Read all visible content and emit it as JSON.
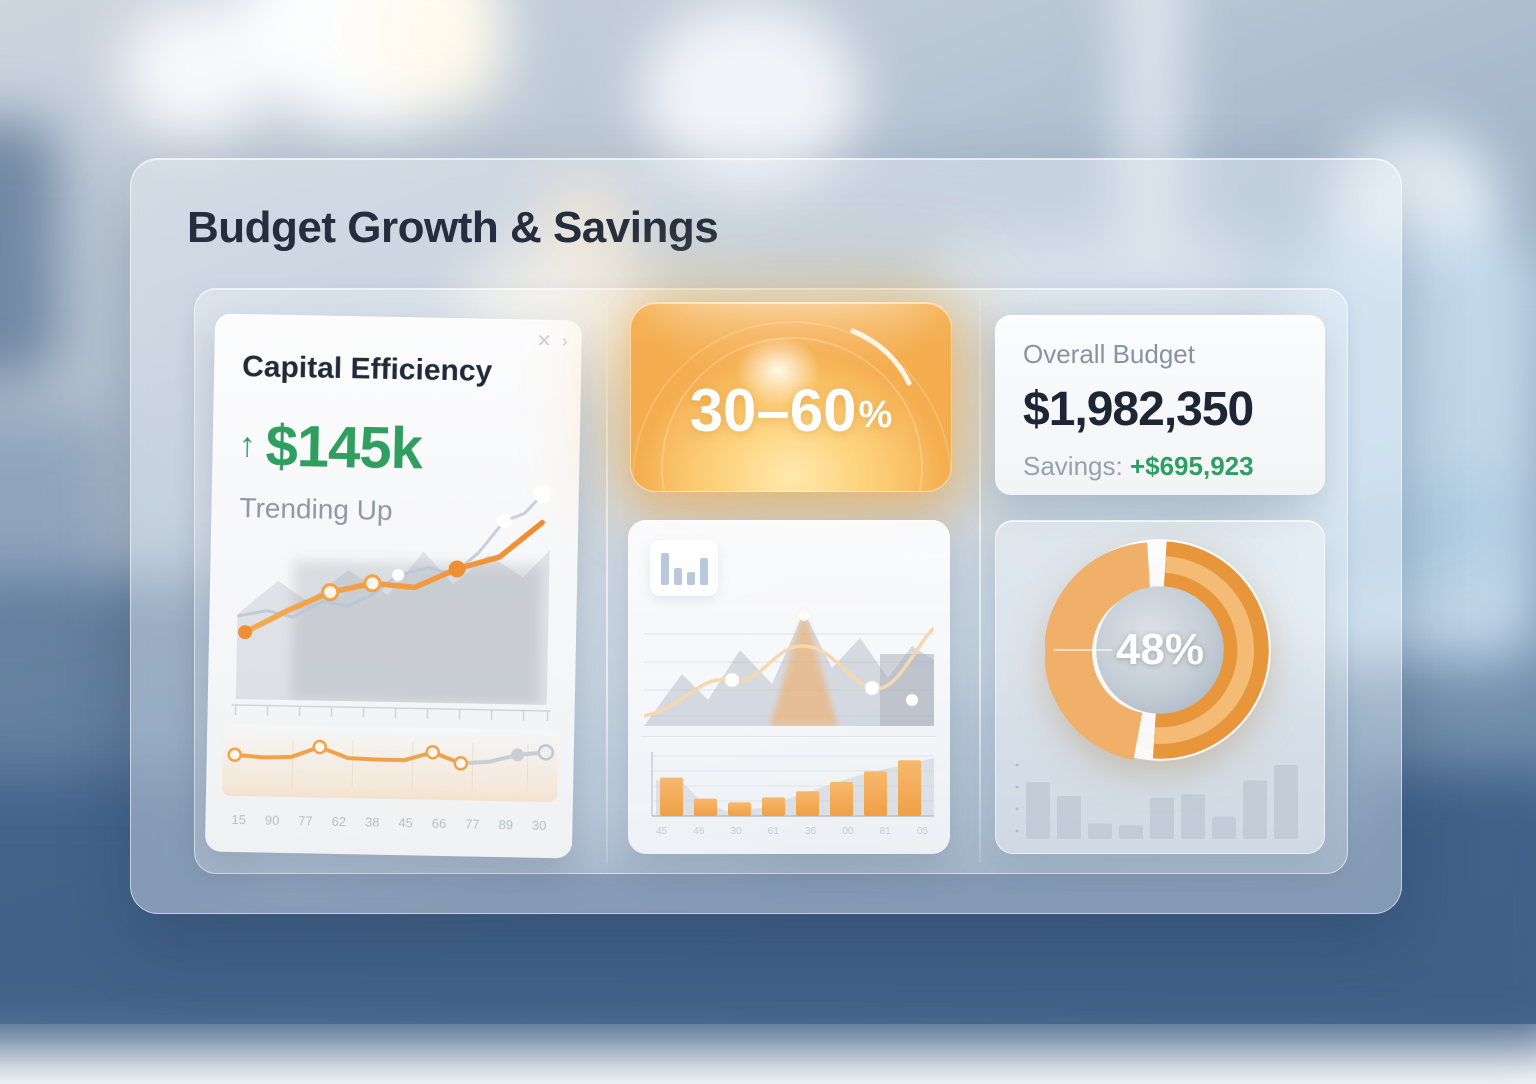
{
  "header": {
    "title": "Budget Growth & Savings"
  },
  "capital_card": {
    "title": "Capital Efficiency",
    "trend_arrow": "↑",
    "value": "$145k",
    "trend_label": "Trending Up",
    "close_icon": "✕",
    "expand_icon": "›"
  },
  "highlight_card": {
    "value": "30–60",
    "unit": "%"
  },
  "budget_card": {
    "label": "Overall Budget",
    "amount": "$1,982,350",
    "savings_label": "Savings: ",
    "savings_amount": "+$695,923"
  },
  "donut_card": {
    "center_label": "48%"
  },
  "colors": {
    "accent_orange": "#F0A242",
    "positive_green": "#2F9E62",
    "ink_navy": "#222D3D",
    "muted_gray": "#8D99A8"
  },
  "chart_data": [
    {
      "name": "capital-trend",
      "type": "line",
      "values": [
        20,
        34,
        46,
        52,
        50,
        62,
        70,
        92
      ],
      "ylim": [
        0,
        100
      ],
      "markers": [
        {
          "i": 0,
          "style": "filled"
        },
        {
          "i": 2,
          "style": "hollow"
        },
        {
          "i": 3,
          "style": "hollow"
        },
        {
          "i": 5,
          "style": "filled"
        }
      ],
      "note": "orange upward trend line over gray mountain silhouettes, unlabeled axes"
    },
    {
      "name": "capital-sparkline",
      "type": "line",
      "values": [
        48,
        44,
        46,
        66,
        46,
        44,
        44,
        60,
        40,
        44,
        58,
        64
      ],
      "gray_from": 8,
      "markers": [
        {
          "i": 0,
          "style": "hollow"
        },
        {
          "i": 3,
          "style": "hollow"
        },
        {
          "i": 7,
          "style": "hollow"
        },
        {
          "i": 8,
          "style": "hollow"
        },
        {
          "i": 10,
          "style": "gray"
        },
        {
          "i": 11,
          "style": "grayhollow"
        }
      ],
      "x_labels": [
        "15",
        "90",
        "77",
        "62",
        "38",
        "45",
        "66",
        "77",
        "89",
        "30"
      ]
    },
    {
      "name": "mid-bars",
      "type": "bar",
      "x_labels": [
        "45",
        "46",
        "30",
        "61",
        "36",
        "00",
        "81",
        "05"
      ],
      "values": [
        62,
        28,
        22,
        30,
        40,
        55,
        72,
        90
      ],
      "ylim": [
        0,
        100
      ]
    },
    {
      "name": "budget-donut",
      "type": "pie",
      "values": [
        48,
        52
      ],
      "center_label": "48%"
    },
    {
      "name": "donut-mini-bars",
      "type": "bar",
      "values": [
        66,
        50,
        18,
        16,
        48,
        52,
        26,
        68,
        86
      ],
      "ylim": [
        0,
        100
      ]
    }
  ]
}
